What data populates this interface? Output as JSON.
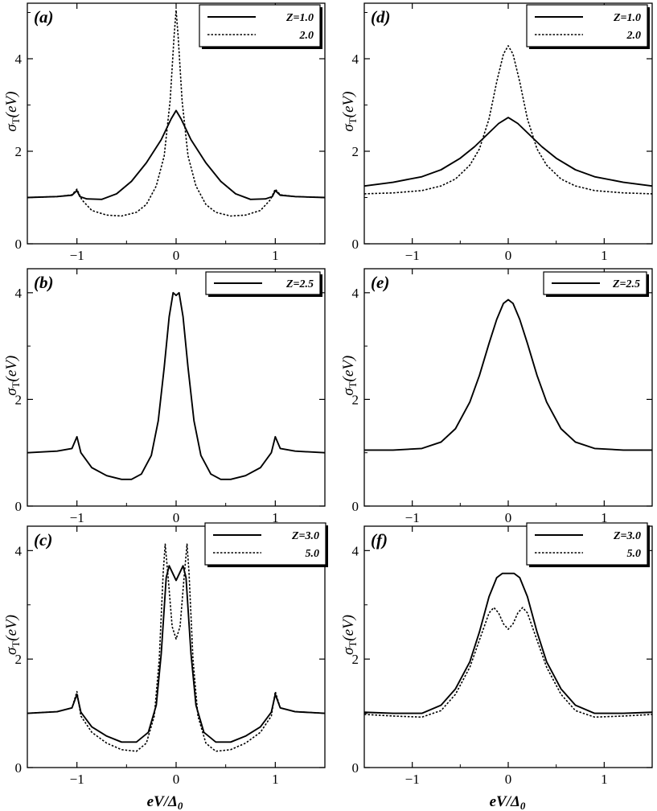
{
  "figure": {
    "xlabel_left": "eV/Δ",
    "xlabel_right": "eV/Δ",
    "xlabel_sub": "0"
  },
  "chart_data": [
    {
      "id": "a",
      "panel_label": "(a)",
      "type": "line",
      "ylabel": "σ",
      "ylabel_sub": "T",
      "ylabel_suffix": "(eV)",
      "xlim": [
        -1.5,
        1.5
      ],
      "ylim": [
        0,
        5.2
      ],
      "xticks": [
        -1,
        0,
        1
      ],
      "xtick_labels": [
        "−1",
        "0",
        "1"
      ],
      "yticks": [
        0,
        2,
        4
      ],
      "ytick_labels": [
        "0",
        "2",
        "4"
      ],
      "series": [
        {
          "name": "Z=1.0",
          "style": "solid",
          "x": [
            -1.5,
            -1.2,
            -1.05,
            -1.0,
            -0.97,
            -0.9,
            -0.75,
            -0.6,
            -0.45,
            -0.3,
            -0.15,
            -0.05,
            0,
            0.05,
            0.15,
            0.3,
            0.45,
            0.6,
            0.75,
            0.9,
            0.97,
            1.0,
            1.05,
            1.2,
            1.5
          ],
          "y": [
            1.0,
            1.02,
            1.05,
            1.15,
            1.02,
            0.97,
            0.96,
            1.08,
            1.35,
            1.75,
            2.25,
            2.7,
            2.88,
            2.7,
            2.25,
            1.75,
            1.35,
            1.08,
            0.96,
            0.97,
            1.02,
            1.15,
            1.05,
            1.02,
            1.0
          ]
        },
        {
          "name": "2.0",
          "style": "dotted",
          "x": [
            -1.5,
            -1.2,
            -1.05,
            -1.0,
            -0.95,
            -0.85,
            -0.7,
            -0.55,
            -0.4,
            -0.3,
            -0.2,
            -0.12,
            -0.06,
            -0.02,
            0,
            0.02,
            0.06,
            0.12,
            0.2,
            0.3,
            0.4,
            0.55,
            0.7,
            0.85,
            0.95,
            1.0,
            1.05,
            1.2,
            1.5
          ],
          "y": [
            1.0,
            1.02,
            1.06,
            1.18,
            0.95,
            0.72,
            0.62,
            0.6,
            0.68,
            0.85,
            1.25,
            1.9,
            3.1,
            4.5,
            5.05,
            4.5,
            3.1,
            1.9,
            1.25,
            0.85,
            0.68,
            0.6,
            0.62,
            0.72,
            0.95,
            1.18,
            1.06,
            1.02,
            1.0
          ]
        }
      ]
    },
    {
      "id": "b",
      "panel_label": "(b)",
      "type": "line",
      "ylabel": "σ",
      "ylabel_sub": "T",
      "ylabel_suffix": "(eV)",
      "xlim": [
        -1.5,
        1.5
      ],
      "ylim": [
        0,
        4.45
      ],
      "xticks": [
        -1,
        0,
        1
      ],
      "xtick_labels": [
        "−1",
        "0",
        "1"
      ],
      "yticks": [
        0,
        2,
        4
      ],
      "ytick_labels": [
        "0",
        "2",
        "4"
      ],
      "series": [
        {
          "name": "Z=2.5",
          "style": "solid",
          "x": [
            -1.5,
            -1.2,
            -1.05,
            -1.0,
            -0.96,
            -0.85,
            -0.7,
            -0.55,
            -0.45,
            -0.35,
            -0.25,
            -0.18,
            -0.12,
            -0.07,
            -0.03,
            0,
            0.03,
            0.07,
            0.12,
            0.18,
            0.25,
            0.35,
            0.45,
            0.55,
            0.7,
            0.85,
            0.96,
            1.0,
            1.05,
            1.2,
            1.5
          ],
          "y": [
            1.0,
            1.03,
            1.08,
            1.3,
            1.0,
            0.72,
            0.57,
            0.5,
            0.5,
            0.6,
            0.95,
            1.6,
            2.6,
            3.55,
            4.0,
            3.95,
            4.0,
            3.55,
            2.6,
            1.6,
            0.95,
            0.6,
            0.5,
            0.5,
            0.57,
            0.72,
            1.0,
            1.3,
            1.08,
            1.03,
            1.0
          ]
        }
      ]
    },
    {
      "id": "c",
      "panel_label": "(c)",
      "type": "line",
      "ylabel": "σ",
      "ylabel_sub": "T",
      "ylabel_suffix": "(eV)",
      "xlim": [
        -1.5,
        1.5
      ],
      "ylim": [
        0,
        4.45
      ],
      "xticks": [
        -1,
        0,
        1
      ],
      "xtick_labels": [
        "−1",
        "0",
        "1"
      ],
      "yticks": [
        0,
        2,
        4
      ],
      "ytick_labels": [
        "0",
        "2",
        "4"
      ],
      "series": [
        {
          "name": "Z=3.0",
          "style": "solid",
          "x": [
            -1.5,
            -1.2,
            -1.05,
            -1.0,
            -0.96,
            -0.85,
            -0.7,
            -0.55,
            -0.4,
            -0.28,
            -0.2,
            -0.15,
            -0.1,
            -0.07,
            0,
            0.07,
            0.1,
            0.15,
            0.2,
            0.28,
            0.4,
            0.55,
            0.7,
            0.85,
            0.96,
            1.0,
            1.05,
            1.2,
            1.5
          ],
          "y": [
            1.0,
            1.03,
            1.1,
            1.35,
            1.02,
            0.75,
            0.58,
            0.47,
            0.47,
            0.65,
            1.15,
            2.1,
            3.5,
            3.72,
            3.45,
            3.72,
            3.5,
            2.1,
            1.15,
            0.65,
            0.47,
            0.47,
            0.58,
            0.75,
            1.02,
            1.35,
            1.1,
            1.03,
            1.0
          ]
        },
        {
          "name": "5.0",
          "style": "dotted",
          "x": [
            -1.5,
            -1.2,
            -1.05,
            -1.0,
            -0.96,
            -0.85,
            -0.7,
            -0.55,
            -0.4,
            -0.3,
            -0.22,
            -0.17,
            -0.13,
            -0.11,
            -0.08,
            -0.04,
            0,
            0.04,
            0.08,
            0.11,
            0.13,
            0.17,
            0.22,
            0.3,
            0.4,
            0.55,
            0.7,
            0.85,
            0.96,
            1.0,
            1.05,
            1.2,
            1.5
          ],
          "y": [
            1.0,
            1.03,
            1.1,
            1.4,
            0.95,
            0.65,
            0.45,
            0.33,
            0.3,
            0.45,
            0.95,
            2.0,
            3.6,
            4.12,
            3.5,
            2.6,
            2.37,
            2.6,
            3.5,
            4.12,
            3.6,
            2.0,
            0.95,
            0.45,
            0.3,
            0.33,
            0.45,
            0.65,
            0.95,
            1.4,
            1.1,
            1.03,
            1.0
          ]
        }
      ]
    },
    {
      "id": "d",
      "panel_label": "(d)",
      "type": "line",
      "ylabel": "σ",
      "ylabel_sub": "T",
      "ylabel_suffix": "(eV)",
      "xlim": [
        -1.5,
        1.5
      ],
      "ylim": [
        0,
        5.2
      ],
      "xticks": [
        -1,
        0,
        1
      ],
      "xtick_labels": [
        "−1",
        "0",
        "1"
      ],
      "yticks": [
        0,
        2,
        4
      ],
      "ytick_labels": [
        "0",
        "2",
        "4"
      ],
      "series": [
        {
          "name": "Z=1.0",
          "style": "solid",
          "x": [
            -1.5,
            -1.2,
            -0.9,
            -0.7,
            -0.5,
            -0.35,
            -0.2,
            -0.1,
            0,
            0.1,
            0.2,
            0.35,
            0.5,
            0.7,
            0.9,
            1.2,
            1.5
          ],
          "y": [
            1.25,
            1.33,
            1.45,
            1.6,
            1.85,
            2.1,
            2.4,
            2.6,
            2.73,
            2.6,
            2.4,
            2.1,
            1.85,
            1.6,
            1.45,
            1.33,
            1.25
          ]
        },
        {
          "name": "2.0",
          "style": "dotted",
          "x": [
            -1.5,
            -1.2,
            -0.9,
            -0.7,
            -0.55,
            -0.4,
            -0.3,
            -0.2,
            -0.12,
            -0.05,
            0,
            0.05,
            0.12,
            0.2,
            0.3,
            0.4,
            0.55,
            0.7,
            0.9,
            1.2,
            1.5
          ],
          "y": [
            1.08,
            1.1,
            1.15,
            1.25,
            1.4,
            1.7,
            2.05,
            2.7,
            3.5,
            4.1,
            4.28,
            4.1,
            3.5,
            2.7,
            2.05,
            1.7,
            1.4,
            1.25,
            1.15,
            1.1,
            1.08
          ]
        }
      ]
    },
    {
      "id": "e",
      "panel_label": "(e)",
      "type": "line",
      "ylabel": "σ",
      "ylabel_sub": "T",
      "ylabel_suffix": "(eV)",
      "xlim": [
        -1.5,
        1.5
      ],
      "ylim": [
        0,
        4.45
      ],
      "xticks": [
        -1,
        0,
        1
      ],
      "xtick_labels": [
        "−1",
        "0",
        "1"
      ],
      "yticks": [
        0,
        2,
        4
      ],
      "ytick_labels": [
        "0",
        "2",
        "4"
      ],
      "series": [
        {
          "name": "Z=2.5",
          "style": "solid",
          "x": [
            -1.5,
            -1.2,
            -0.9,
            -0.7,
            -0.55,
            -0.4,
            -0.3,
            -0.2,
            -0.12,
            -0.05,
            0,
            0.05,
            0.12,
            0.2,
            0.3,
            0.4,
            0.55,
            0.7,
            0.9,
            1.2,
            1.5
          ],
          "y": [
            1.05,
            1.05,
            1.08,
            1.2,
            1.45,
            1.95,
            2.45,
            3.05,
            3.5,
            3.8,
            3.87,
            3.8,
            3.5,
            3.05,
            2.45,
            1.95,
            1.45,
            1.2,
            1.08,
            1.05,
            1.05
          ]
        }
      ]
    },
    {
      "id": "f",
      "panel_label": "(f)",
      "type": "line",
      "ylabel": "σ",
      "ylabel_sub": "T",
      "ylabel_suffix": "(eV)",
      "xlim": [
        -1.5,
        1.5
      ],
      "ylim": [
        0,
        4.45
      ],
      "xticks": [
        -1,
        0,
        1
      ],
      "xtick_labels": [
        "−1",
        "0",
        "1"
      ],
      "yticks": [
        0,
        2,
        4
      ],
      "ytick_labels": [
        "0",
        "2",
        "4"
      ],
      "series": [
        {
          "name": "Z=3.0",
          "style": "solid",
          "x": [
            -1.5,
            -1.2,
            -0.9,
            -0.7,
            -0.55,
            -0.4,
            -0.3,
            -0.2,
            -0.12,
            -0.06,
            0,
            0.06,
            0.12,
            0.2,
            0.3,
            0.4,
            0.55,
            0.7,
            0.9,
            1.2,
            1.5
          ],
          "y": [
            1.02,
            1.0,
            1.0,
            1.15,
            1.45,
            1.95,
            2.5,
            3.15,
            3.5,
            3.58,
            3.58,
            3.58,
            3.5,
            3.15,
            2.5,
            1.95,
            1.45,
            1.15,
            1.0,
            1.0,
            1.02
          ]
        },
        {
          "name": "5.0",
          "style": "dotted",
          "x": [
            -1.5,
            -1.2,
            -0.9,
            -0.7,
            -0.55,
            -0.4,
            -0.3,
            -0.2,
            -0.15,
            -0.1,
            -0.05,
            0,
            0.05,
            0.1,
            0.15,
            0.2,
            0.3,
            0.4,
            0.55,
            0.7,
            0.9,
            1.2,
            1.5
          ],
          "y": [
            0.98,
            0.95,
            0.93,
            1.05,
            1.35,
            1.85,
            2.35,
            2.85,
            2.95,
            2.85,
            2.65,
            2.55,
            2.65,
            2.85,
            2.95,
            2.85,
            2.35,
            1.85,
            1.35,
            1.05,
            0.93,
            0.95,
            0.98
          ]
        }
      ]
    }
  ]
}
